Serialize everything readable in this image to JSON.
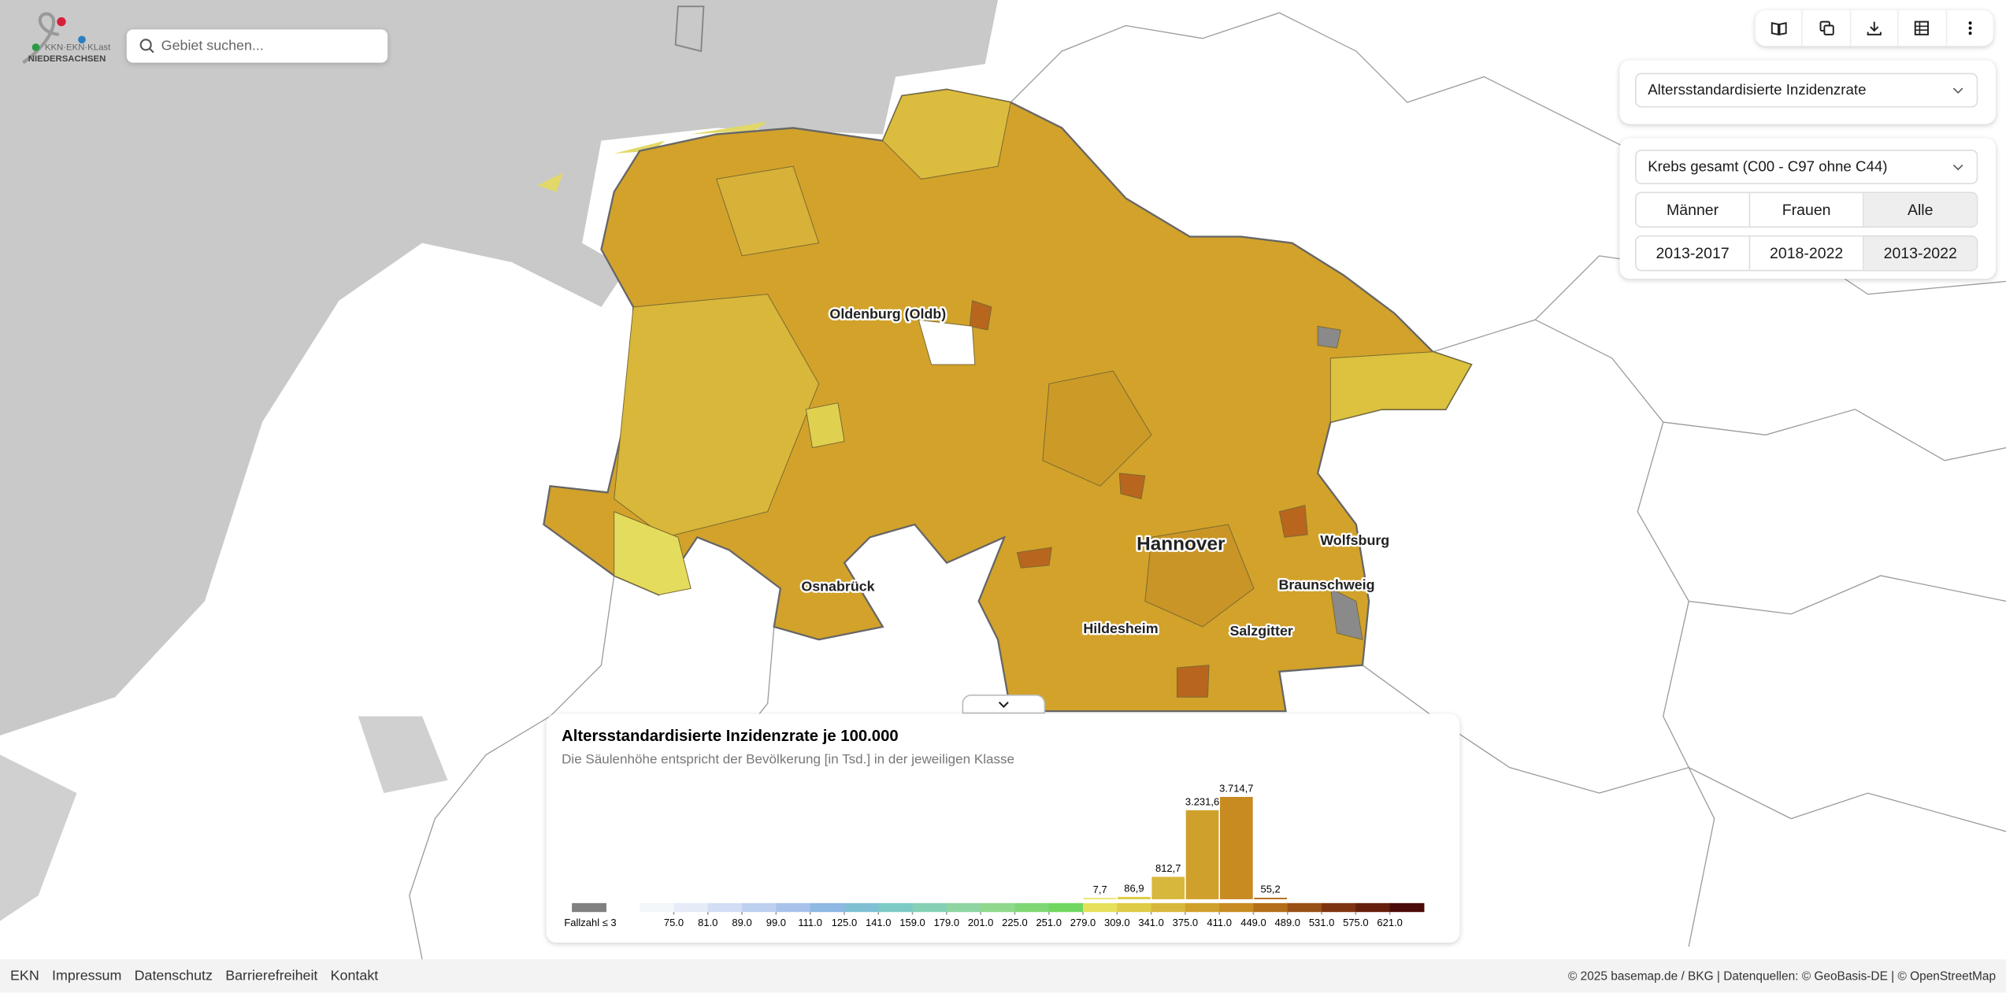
{
  "header": {
    "logo_line1": "KKN·EKN·KLast",
    "logo_line2": "NIEDERSACHSEN",
    "search_placeholder": "Gebiet suchen..."
  },
  "controls": {
    "measure": "Altersstandardisierte Inzidenzrate",
    "cancer": "Krebs gesamt (C00 - C97 ohne C44)",
    "sex_options": [
      "Männer",
      "Frauen",
      "Alle"
    ],
    "sex_selected": 2,
    "period_options": [
      "2013-2017",
      "2018-2022",
      "2013-2022"
    ],
    "period_selected": 2
  },
  "map": {
    "labels": [
      "Oldenburg (Oldb)",
      "Hannover",
      "Wolfsburg",
      "Braunschweig",
      "Osnabrück",
      "Hildesheim",
      "Salzgitter"
    ]
  },
  "legend": {
    "title": "Altersstandardisierte Inzidenzrate je 100.000",
    "subtitle": "Die Säulenhöhe entspricht der Bevölkerung [in Tsd.] in der jeweiligen Klasse",
    "no_data_label": "Fallzahl ≤ 3",
    "no_data_color": "#808080",
    "colors": [
      "#f3f7fa",
      "#e5ecf8",
      "#d3def5",
      "#bed0f0",
      "#a8c2eb",
      "#8fb8e3",
      "#80c0d4",
      "#7ccac6",
      "#86d0b6",
      "#8ed5a2",
      "#8fd98c",
      "#7fd774",
      "#6fd760",
      "#e6e15a",
      "#dfcb46",
      "#d8b83c",
      "#d0a02c",
      "#c78b22",
      "#b46e1a",
      "#995014",
      "#7e3410",
      "#651f0c",
      "#4a0c08"
    ],
    "edges": [
      {
        "value": 75,
        "label": "75.0"
      },
      {
        "value": 81,
        "label": "81.0"
      },
      {
        "value": 89,
        "label": "89.0"
      },
      {
        "value": 99,
        "label": "99.0"
      },
      {
        "value": 111,
        "label": "111.0"
      },
      {
        "value": 125,
        "label": "125.0"
      },
      {
        "value": 141,
        "label": "141.0"
      },
      {
        "value": 159,
        "label": "159.0"
      },
      {
        "value": 179,
        "label": "179.0"
      },
      {
        "value": 201,
        "label": "201.0"
      },
      {
        "value": 225,
        "label": "225.0"
      },
      {
        "value": 251,
        "label": "251.0"
      },
      {
        "value": 279,
        "label": "279.0"
      },
      {
        "value": 309,
        "label": "309.0"
      },
      {
        "value": 341,
        "label": "341.0"
      },
      {
        "value": 375,
        "label": "375.0"
      },
      {
        "value": 411,
        "label": "411.0"
      },
      {
        "value": 449,
        "label": "449.0"
      },
      {
        "value": 489,
        "label": "489.0"
      },
      {
        "value": 531,
        "label": "531.0"
      },
      {
        "value": 575,
        "label": "575.0"
      },
      {
        "value": 621,
        "label": "621.0"
      }
    ],
    "values": [
      null,
      null,
      null,
      null,
      null,
      null,
      null,
      null,
      null,
      null,
      null,
      null,
      null,
      7.7,
      86.9,
      812.7,
      3231.6,
      3714.7,
      55.2,
      null,
      null,
      null,
      null
    ],
    "value_labels": [
      null,
      null,
      null,
      null,
      null,
      null,
      null,
      null,
      null,
      null,
      null,
      null,
      null,
      "7,7",
      "86,9",
      "812,7",
      "3.231,6",
      "3.714,7",
      "55,2",
      null,
      null,
      null,
      null
    ]
  },
  "footer": {
    "links": [
      "EKN",
      "Impressum",
      "Datenschutz",
      "Barrierefreiheit",
      "Kontakt"
    ],
    "attribution": "© 2025 basemap.de / BKG | Datenquellen: © GeoBasis-DE | © OpenStreetMap"
  }
}
